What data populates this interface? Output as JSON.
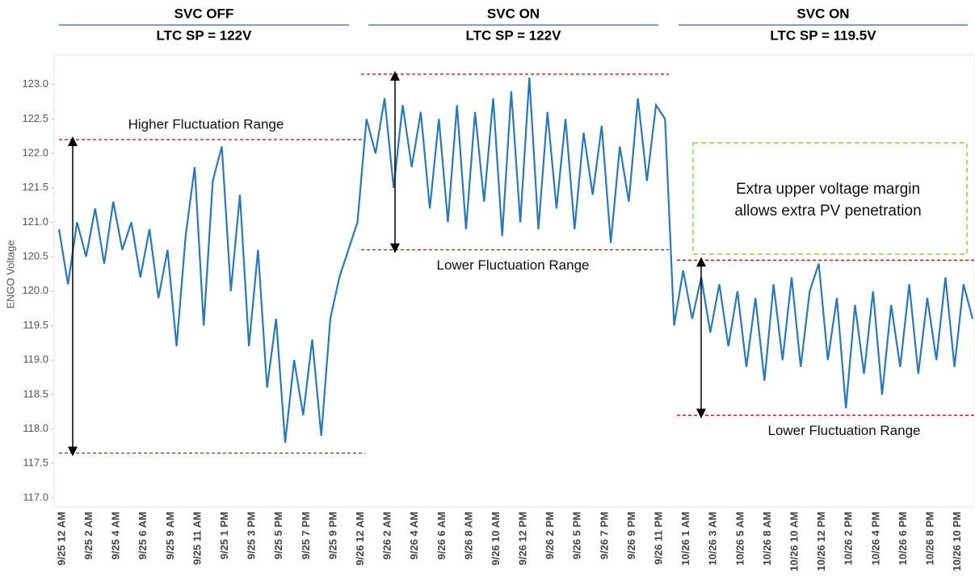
{
  "chart_data": {
    "type": "line",
    "y_label": "ENGO Voltage",
    "color": "#2b78b6",
    "categories": [
      "9/25 12 AM",
      null,
      null,
      "9/25 2 AM",
      null,
      null,
      "9/25 4 AM",
      null,
      null,
      "9/25 6 AM",
      null,
      null,
      "9/25 9 AM",
      null,
      null,
      "9/25 11 AM",
      null,
      null,
      "9/25 1 PM",
      null,
      null,
      "9/25 3 PM",
      null,
      null,
      "9/25 5 PM",
      null,
      null,
      "9/25 7 PM",
      null,
      null,
      "9/25 9 PM",
      null,
      null,
      "9/26 12 AM",
      null,
      null,
      "9/26 2 AM",
      null,
      null,
      "9/26 4 AM",
      null,
      null,
      "9/26 6 AM",
      null,
      null,
      "9/26 8 AM",
      null,
      null,
      "9/26 10 AM",
      null,
      null,
      "9/26 12 PM",
      null,
      null,
      "9/26 2 PM",
      null,
      null,
      "9/26 5 PM",
      null,
      null,
      "9/26 7 PM",
      null,
      null,
      "9/26 9 PM",
      null,
      null,
      "9/26 11 PM",
      null,
      null,
      "10/26 1 AM",
      null,
      null,
      "10/26 3 AM",
      null,
      null,
      "10/26 5 AM",
      null,
      null,
      "10/26 8 AM",
      null,
      null,
      "10/26 10 AM",
      null,
      null,
      "10/26 12 PM",
      null,
      null,
      "10/26 2 PM",
      null,
      null,
      "10/26 4 PM",
      null,
      null,
      "10/26 6 PM",
      null,
      null,
      "10/26 8 PM",
      null,
      null,
      "10/26 10 PM",
      null,
      null
    ],
    "values": [
      120.9,
      120.1,
      121.0,
      120.5,
      121.2,
      120.4,
      121.3,
      120.6,
      121.0,
      120.2,
      120.9,
      119.9,
      120.6,
      119.2,
      120.8,
      121.8,
      119.5,
      121.6,
      122.1,
      120.0,
      121.4,
      119.2,
      120.6,
      118.6,
      119.6,
      117.8,
      119.0,
      118.2,
      119.3,
      117.9,
      119.6,
      120.2,
      120.6,
      121.0,
      122.5,
      122.0,
      122.8,
      121.5,
      122.7,
      121.8,
      122.6,
      121.2,
      122.5,
      121.0,
      122.7,
      120.9,
      122.6,
      121.3,
      122.8,
      120.8,
      122.9,
      121.0,
      123.1,
      120.9,
      122.6,
      121.2,
      122.5,
      120.9,
      122.3,
      121.4,
      122.4,
      120.7,
      122.1,
      121.3,
      122.8,
      121.6,
      122.7,
      122.5,
      119.5,
      120.3,
      119.6,
      120.2,
      119.4,
      120.1,
      119.2,
      120.0,
      118.9,
      119.9,
      118.7,
      120.1,
      119.0,
      120.2,
      118.9,
      120.0,
      120.4,
      119.0,
      119.9,
      118.3,
      119.8,
      118.8,
      120.0,
      118.5,
      119.8,
      118.9,
      120.1,
      118.8,
      119.9,
      119.0,
      120.2,
      118.9,
      120.1,
      119.6
    ],
    "ylim": [
      116.87,
      123.43
    ],
    "yticks": [
      {
        "value": 117,
        "label": "117.0"
      },
      {
        "value": 117.5,
        "label": "117.5"
      },
      {
        "value": 118,
        "label": "118.0"
      },
      {
        "value": 118.5,
        "label": "118.5"
      },
      {
        "value": 119,
        "label": "119.0"
      },
      {
        "value": 119.5,
        "label": "119.5"
      },
      {
        "value": 120,
        "label": "120.0"
      },
      {
        "value": 120.5,
        "label": "120.5"
      },
      {
        "value": 121,
        "label": "121.0"
      },
      {
        "value": 121.5,
        "label": "121.5"
      },
      {
        "value": 122,
        "label": "122.0"
      },
      {
        "value": 122.5,
        "label": "122.5"
      },
      {
        "value": 123,
        "label": "123.0"
      }
    ],
    "sections": [
      {
        "title": "SVC OFF",
        "subtitle": "LTC SP = 122V",
        "upper": 122.2,
        "lower": 117.65,
        "range_label": "Higher Fluctuation Range"
      },
      {
        "title": "SVC ON",
        "subtitle": "LTC SP = 122V",
        "upper": 123.15,
        "lower": 120.6,
        "range_label": "Lower Fluctuation Range"
      },
      {
        "title": "SVC ON",
        "subtitle": "LTC SP = 119.5V",
        "upper": 120.45,
        "lower": 118.2,
        "range_label": "Lower Fluctuation Range"
      }
    ],
    "note_lines": [
      "Extra upper voltage margin",
      "allows extra PV penetration"
    ]
  }
}
